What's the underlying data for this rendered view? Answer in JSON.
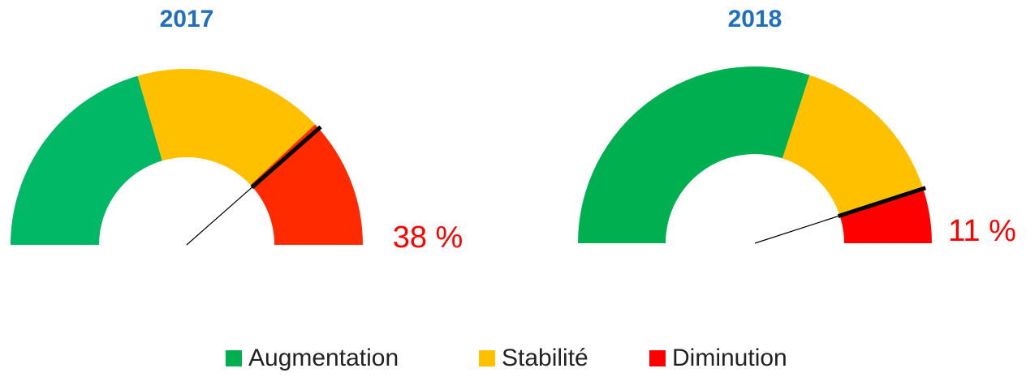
{
  "chart_data": [
    {
      "type": "gauge",
      "title": "2017",
      "values": [
        41,
        35,
        24
      ],
      "colors": [
        "#00b865",
        "#ffc000",
        "#ff2a00"
      ],
      "needle": 77,
      "label": "38 %"
    },
    {
      "type": "gauge",
      "title": "2018",
      "values": [
        60,
        30,
        10
      ],
      "colors": [
        "#00b050",
        "#ffc000",
        "#ff0000"
      ],
      "needle": 90,
      "label": "11 %"
    }
  ],
  "legend": {
    "items": [
      {
        "name": "Augmentation",
        "color": "#00b050"
      },
      {
        "name": "Stabilité",
        "color": "#ffc000"
      },
      {
        "name": "Diminution",
        "color": "#ff0000"
      }
    ]
  }
}
